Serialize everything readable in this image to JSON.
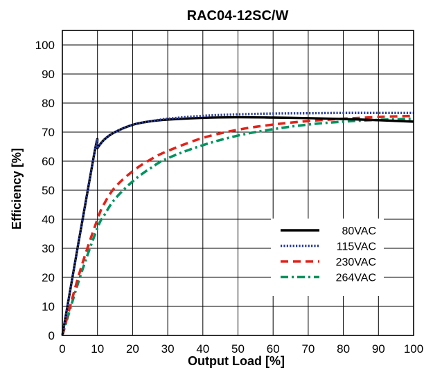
{
  "chart_data": {
    "type": "line",
    "title": "RAC04-12SC/W",
    "xlabel": "Output Load [%]",
    "ylabel": "Efficiency [%]",
    "xlim": [
      0,
      100
    ],
    "ylim": [
      0,
      105
    ],
    "xticks": [
      0,
      10,
      20,
      30,
      40,
      50,
      60,
      70,
      80,
      90,
      100
    ],
    "yticks": [
      0,
      10,
      20,
      30,
      40,
      50,
      60,
      70,
      80,
      90,
      100
    ],
    "grid": true,
    "legend_position": "lower-right",
    "series": [
      {
        "name": "80VAC",
        "color": "#000000",
        "dash": "solid",
        "x": [
          0,
          9,
          10,
          12,
          15,
          20,
          25,
          30,
          40,
          50,
          60,
          70,
          80,
          90,
          100
        ],
        "y": [
          0,
          62,
          64.5,
          67.5,
          70,
          72.5,
          73.7,
          74.3,
          74.9,
          75.1,
          75,
          74.8,
          74.5,
          74.1,
          73.6
        ]
      },
      {
        "name": "115VAC",
        "color": "#2b3f9e",
        "dash": "dotted",
        "x": [
          0,
          9,
          10,
          12,
          15,
          20,
          25,
          30,
          40,
          50,
          60,
          70,
          80,
          90,
          100
        ],
        "y": [
          0,
          62,
          64.5,
          67.5,
          70,
          72.5,
          73.7,
          74.6,
          75.6,
          76.1,
          76.4,
          76.5,
          76.6,
          76.6,
          76.6
        ]
      },
      {
        "name": "230VAC",
        "color": "#e2231a",
        "dash": "dashed",
        "x": [
          0,
          5,
          10,
          12,
          15,
          20,
          25,
          30,
          40,
          50,
          60,
          70,
          80,
          90,
          100
        ],
        "y": [
          0,
          22,
          40,
          45.5,
          51,
          56.5,
          60.5,
          63.5,
          68,
          70.8,
          72.6,
          73.8,
          74.6,
          75.2,
          75.6
        ]
      },
      {
        "name": "264VAC",
        "color": "#00935f",
        "dash": "dashdot",
        "x": [
          0,
          5,
          10,
          12,
          15,
          20,
          25,
          30,
          40,
          50,
          60,
          70,
          80,
          90,
          100
        ],
        "y": [
          0,
          20,
          37,
          41.5,
          47,
          53,
          57.5,
          61,
          65.5,
          68.8,
          71,
          72.6,
          73.6,
          74.2,
          74.6
        ]
      }
    ]
  }
}
